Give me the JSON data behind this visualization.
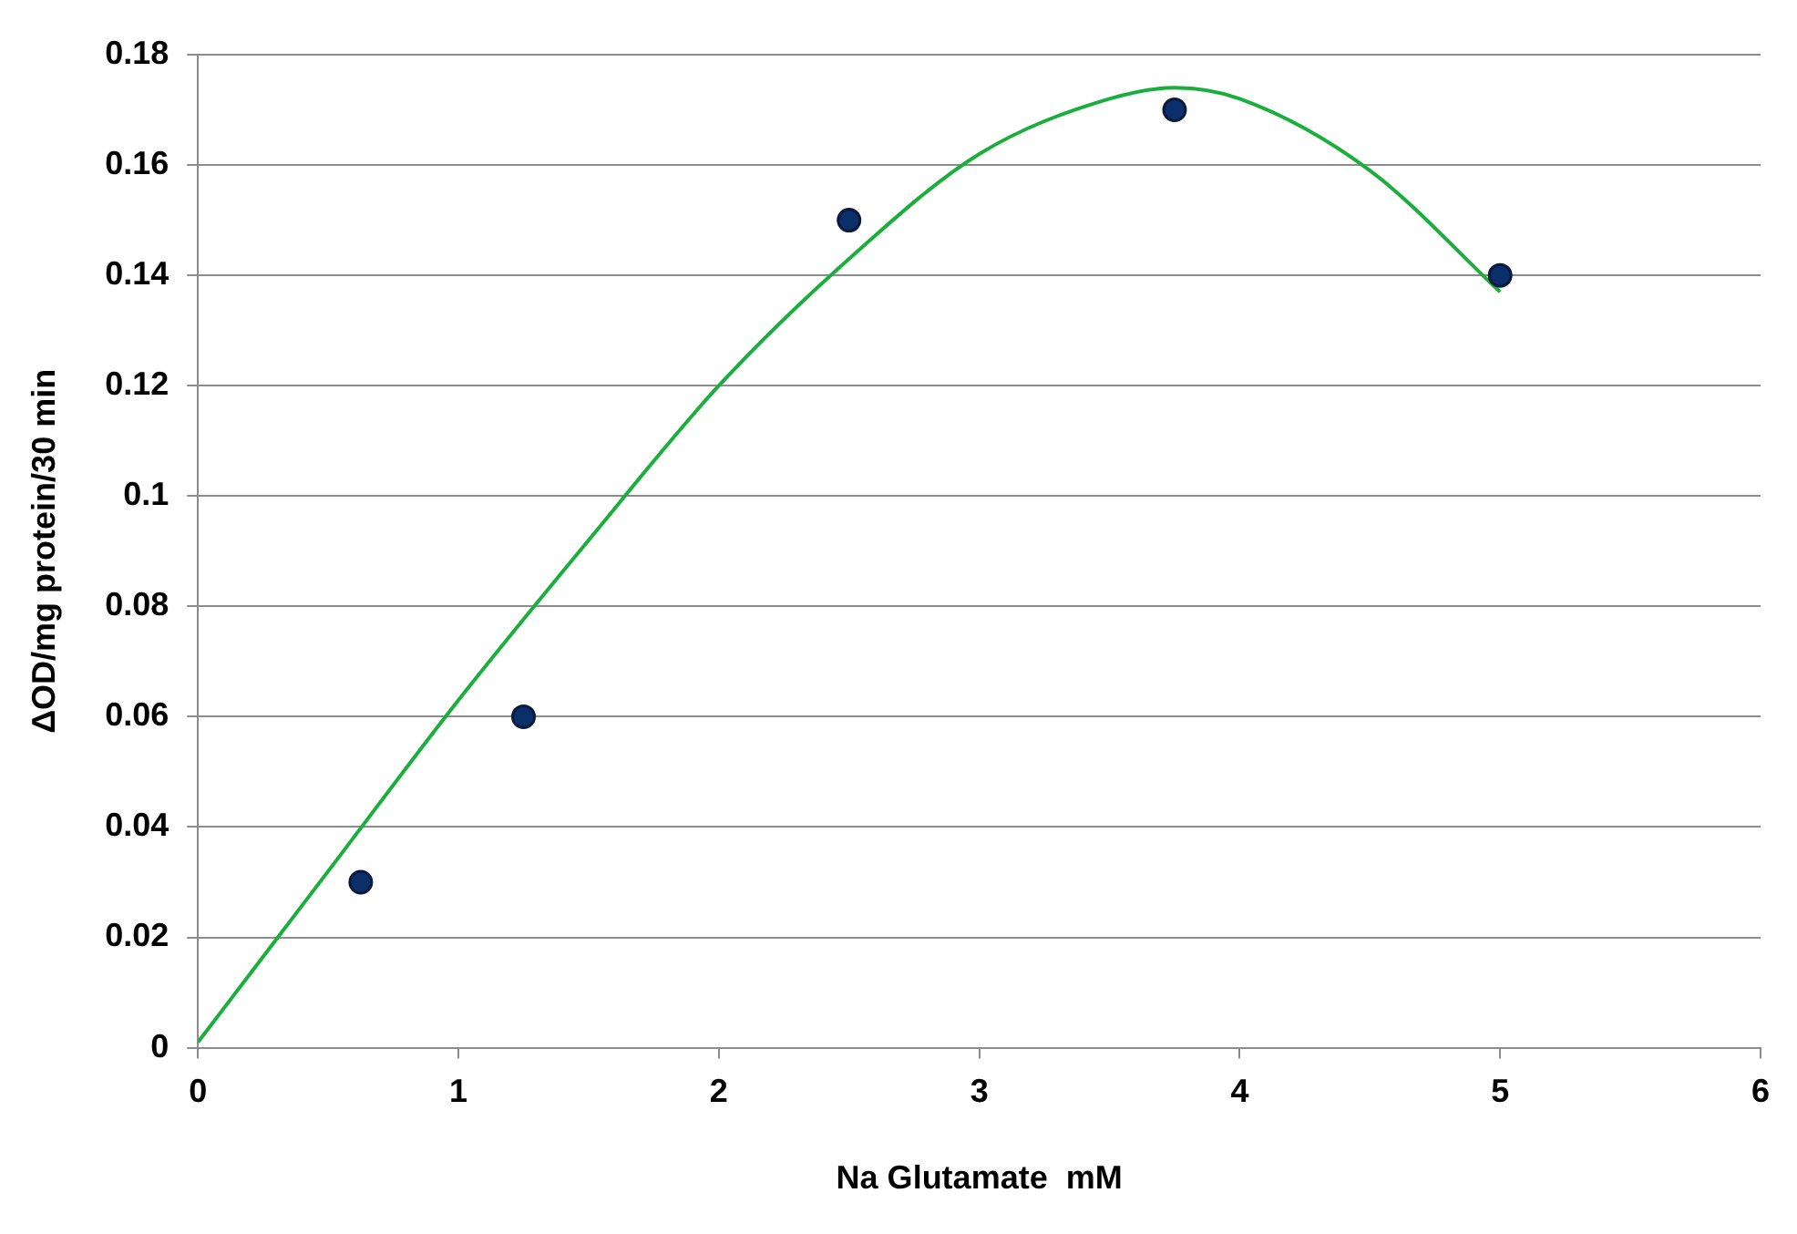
{
  "chart_data": {
    "type": "scatter",
    "xlabel": "Na Glutamate  mM",
    "ylabel": "ΔOD/mg protein/30 min",
    "xlim": [
      0,
      6
    ],
    "xticks": [
      0,
      1,
      2,
      3,
      4,
      5,
      6
    ],
    "ylim": [
      0,
      0.18
    ],
    "yticks": [
      0,
      0.02,
      0.04,
      0.06,
      0.08,
      0.1,
      0.12,
      0.14,
      0.16,
      0.18
    ],
    "grid": "y",
    "legend": false,
    "marker": "circle",
    "series": [
      {
        "color": "#0b2f6b",
        "x": [
          0.625,
          1.25,
          2.5,
          3.75,
          5
        ],
        "values": [
          0.03,
          0.06,
          0.15,
          0.17,
          0.14
        ]
      },
      {
        "type": "line",
        "color": "#1aaf3c",
        "marker": "none",
        "x": [
          0,
          0.5,
          1,
          1.5,
          2,
          2.5,
          3,
          3.5,
          3.75,
          4,
          4.5,
          5
        ],
        "values": [
          0.001,
          0.032,
          0.063,
          0.092,
          0.12,
          0.143,
          0.162,
          0.172,
          0.174,
          0.172,
          0.159,
          0.137
        ]
      }
    ]
  }
}
